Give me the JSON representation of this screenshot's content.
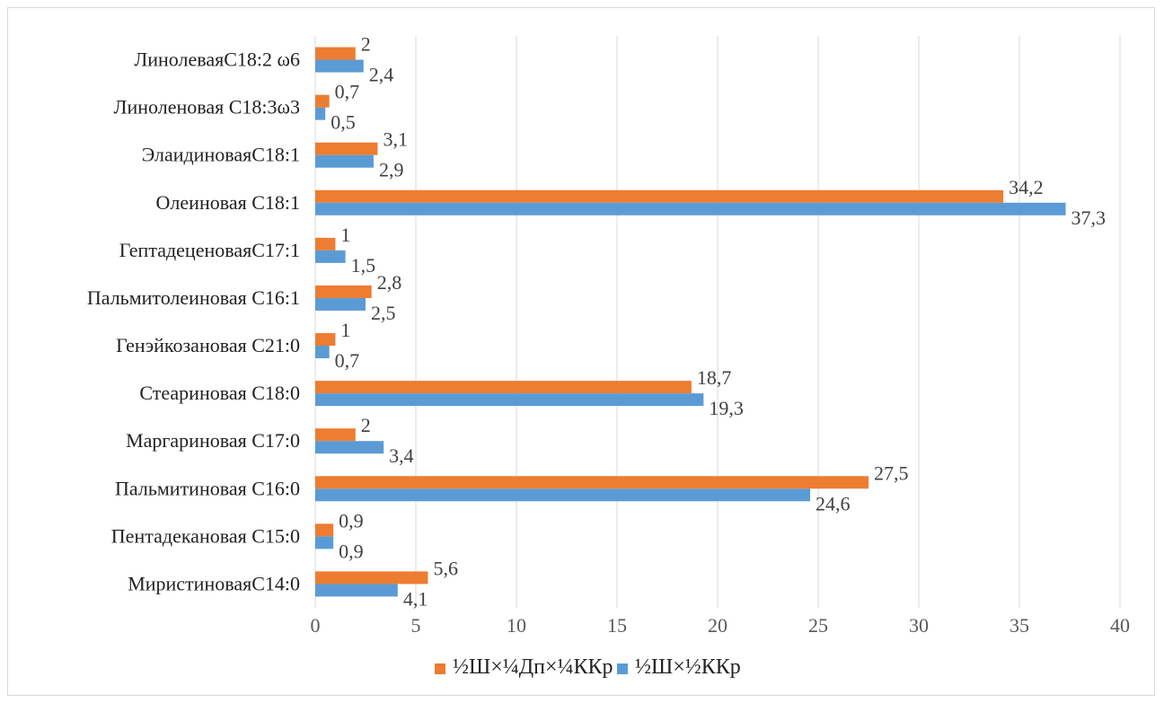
{
  "chart_data": {
    "type": "bar",
    "orientation": "horizontal",
    "categories": [
      "МиристиноваяС14:0",
      "Пентадекановая С15:0",
      "Пальмитиновая С16:0",
      "Маргариновая С17:0",
      "Стеариновая С18:0",
      "Генэйкозановая С21:0",
      "Пальмитолеиновая С16:1",
      "ГептадеценоваяС17:1",
      "Олеиновая С18:1",
      "ЭлаидиноваяС18:1",
      "Линоленовая С18:3ω3",
      "ЛинолеваяС18:2 ω6"
    ],
    "series": [
      {
        "name": "½Ш×¼Дп×¼ККр",
        "color": "#ed7d31",
        "values": [
          5.6,
          0.9,
          27.5,
          2,
          18.7,
          1,
          2.8,
          1,
          34.2,
          3.1,
          0.7,
          2
        ],
        "labels": [
          "5,6",
          "0,9",
          "27,5",
          "2",
          "18,7",
          "1",
          "2,8",
          "1",
          "34,2",
          "3,1",
          "0,7",
          "2"
        ]
      },
      {
        "name": "½Ш×½ККр",
        "color": "#5b9bd5",
        "values": [
          4.1,
          0.9,
          24.6,
          3.4,
          19.3,
          0.7,
          2.5,
          1.5,
          37.3,
          2.9,
          0.5,
          2.4
        ],
        "labels": [
          "4,1",
          "0,9",
          "24,6",
          "3,4",
          "19,3",
          "0,7",
          "2,5",
          "1,5",
          "37,3",
          "2,9",
          "0,5",
          "2,4"
        ]
      }
    ],
    "xlim": [
      0,
      40
    ],
    "xticks": [
      0,
      5,
      10,
      15,
      20,
      25,
      30,
      35,
      40
    ],
    "grid": "vertical",
    "legend_position": "bottom",
    "title": "",
    "xlabel": "",
    "ylabel": ""
  }
}
